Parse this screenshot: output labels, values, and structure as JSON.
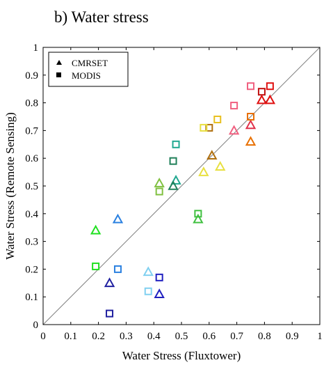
{
  "chart_data": {
    "type": "scatter",
    "title": "b) Water stress",
    "xlabel": "Water Stress (Fluxtower)",
    "ylabel": "Water Stress (Remote Sensing)",
    "xlim": [
      0,
      1
    ],
    "ylim": [
      0,
      1
    ],
    "xticks": [
      "0",
      "0.1",
      "0.2",
      "0.3",
      "0.4",
      "0.5",
      "0.6",
      "0.7",
      "0.8",
      "0.9",
      "1"
    ],
    "yticks": [
      "0",
      "0.1",
      "0.2",
      "0.3",
      "0.4",
      "0.5",
      "0.6",
      "0.7",
      "0.8",
      "0.9",
      "1"
    ],
    "grid": false,
    "reference_line": "1:1",
    "legend": {
      "position": "top-left",
      "entries": [
        {
          "label": "CMRSET",
          "marker": "triangle"
        },
        {
          "label": "MODIS",
          "marker": "square"
        }
      ]
    },
    "series": [
      {
        "name": "CMRSET",
        "marker": "triangle",
        "points": [
          {
            "x": 0.82,
            "y": 0.81,
            "color": "#e01010"
          },
          {
            "x": 0.79,
            "y": 0.81,
            "color": "#e01010"
          },
          {
            "x": 0.75,
            "y": 0.72,
            "color": "#e0304a"
          },
          {
            "x": 0.69,
            "y": 0.7,
            "color": "#f06080"
          },
          {
            "x": 0.75,
            "y": 0.66,
            "color": "#e87000"
          },
          {
            "x": 0.61,
            "y": 0.61,
            "color": "#b07010"
          },
          {
            "x": 0.64,
            "y": 0.57,
            "color": "#e8e040"
          },
          {
            "x": 0.58,
            "y": 0.55,
            "color": "#e8e040"
          },
          {
            "x": 0.42,
            "y": 0.51,
            "color": "#80c040"
          },
          {
            "x": 0.48,
            "y": 0.52,
            "color": "#20a890"
          },
          {
            "x": 0.47,
            "y": 0.5,
            "color": "#20805a"
          },
          {
            "x": 0.56,
            "y": 0.38,
            "color": "#40c040"
          },
          {
            "x": 0.27,
            "y": 0.38,
            "color": "#2a80e0"
          },
          {
            "x": 0.19,
            "y": 0.34,
            "color": "#20e020"
          },
          {
            "x": 0.38,
            "y": 0.19,
            "color": "#80d0f0"
          },
          {
            "x": 0.24,
            "y": 0.15,
            "color": "#2020a0"
          },
          {
            "x": 0.42,
            "y": 0.11,
            "color": "#2020c0"
          }
        ]
      },
      {
        "name": "MODIS",
        "marker": "square",
        "points": [
          {
            "x": 0.82,
            "y": 0.86,
            "color": "#e01010"
          },
          {
            "x": 0.79,
            "y": 0.84,
            "color": "#c01010"
          },
          {
            "x": 0.75,
            "y": 0.86,
            "color": "#f06080"
          },
          {
            "x": 0.69,
            "y": 0.79,
            "color": "#f06080"
          },
          {
            "x": 0.75,
            "y": 0.75,
            "color": "#e87000"
          },
          {
            "x": 0.63,
            "y": 0.74,
            "color": "#e8c020"
          },
          {
            "x": 0.6,
            "y": 0.71,
            "color": "#b07010"
          },
          {
            "x": 0.58,
            "y": 0.71,
            "color": "#e8e040"
          },
          {
            "x": 0.48,
            "y": 0.65,
            "color": "#20a890"
          },
          {
            "x": 0.47,
            "y": 0.59,
            "color": "#20805a"
          },
          {
            "x": 0.42,
            "y": 0.48,
            "color": "#80c040"
          },
          {
            "x": 0.56,
            "y": 0.4,
            "color": "#40c040"
          },
          {
            "x": 0.19,
            "y": 0.21,
            "color": "#20e020"
          },
          {
            "x": 0.27,
            "y": 0.2,
            "color": "#2a80e0"
          },
          {
            "x": 0.42,
            "y": 0.17,
            "color": "#2020c0"
          },
          {
            "x": 0.38,
            "y": 0.12,
            "color": "#80d0f0"
          },
          {
            "x": 0.24,
            "y": 0.04,
            "color": "#2020a0"
          }
        ]
      }
    ]
  }
}
